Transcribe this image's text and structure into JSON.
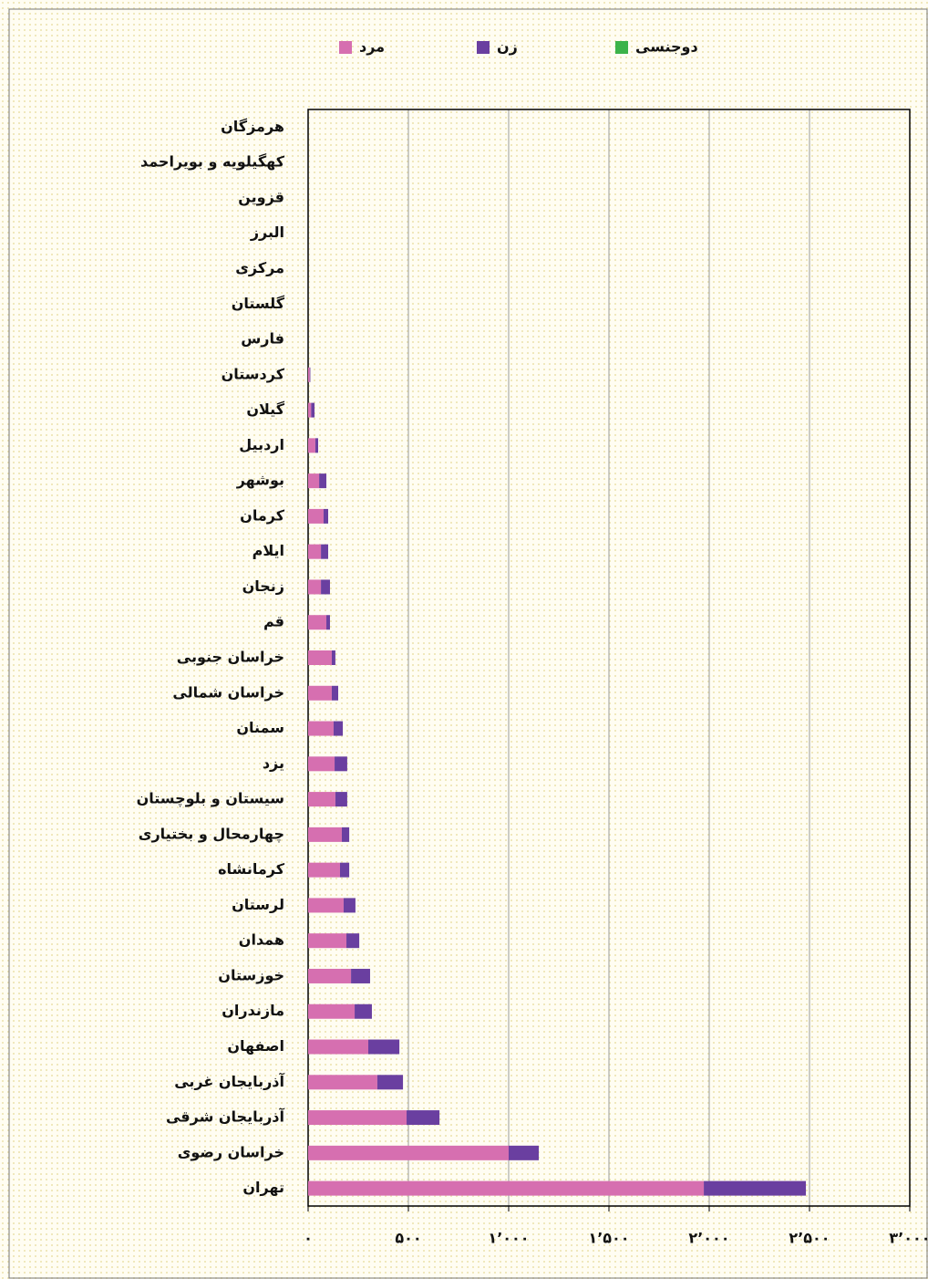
{
  "chart_data": {
    "type": "bar",
    "orientation": "horizontal",
    "stacked": true,
    "categories": [
      "هرمزگان",
      "کهگیلویه و بویراحمد",
      "قزوین",
      "البرز",
      "مرکزی",
      "گلستان",
      "فارس",
      "کردستان",
      "گیلان",
      "اردبیل",
      "بوشهر",
      "کرمان",
      "ایلام",
      "زنجان",
      "قم",
      "خراسان جنوبی",
      "خراسان شمالی",
      "سمنان",
      "یزد",
      "سیستان و بلوچستان",
      "چهارمحال و بختیاری",
      "کرمانشاه",
      "لرستان",
      "همدان",
      "خوزستان",
      "مازندران",
      "اصفهان",
      "آذربایجان غربی",
      "آذربایجان شرقی",
      "خراسان رضوی",
      "تهران"
    ],
    "series": [
      {
        "name": "مرد",
        "color": "#d66fb0",
        "values": [
          0,
          0,
          0,
          0,
          0,
          0,
          0,
          8,
          15,
          36,
          55,
          77,
          64,
          64,
          91,
          118,
          118,
          127,
          132,
          136,
          168,
          159,
          177,
          191,
          214,
          232,
          300,
          345,
          491,
          1000,
          1973
        ]
      },
      {
        "name": "زن",
        "color": "#6a3fa0",
        "values": [
          0,
          0,
          0,
          0,
          0,
          0,
          0,
          3,
          17,
          14,
          36,
          23,
          36,
          45,
          18,
          18,
          32,
          46,
          63,
          59,
          37,
          46,
          59,
          64,
          95,
          86,
          155,
          128,
          164,
          150,
          509
        ]
      },
      {
        "name": "دوجنسی",
        "color": "#3cb34a",
        "values": [
          0,
          0,
          0,
          0,
          0,
          0,
          0,
          0,
          0,
          0,
          0,
          0,
          0,
          0,
          0,
          0,
          0,
          0,
          0,
          0,
          0,
          0,
          0,
          0,
          0,
          0,
          0,
          0,
          0,
          0,
          0
        ]
      }
    ],
    "xlim": [
      0,
      3000
    ],
    "xticks": [
      {
        "value": 0,
        "label": "۰"
      },
      {
        "value": 500,
        "label": "۵۰۰"
      },
      {
        "value": 1000,
        "label": "۱٬۰۰۰"
      },
      {
        "value": 1500,
        "label": "۱٬۵۰۰"
      },
      {
        "value": 2000,
        "label": "۲٬۰۰۰"
      },
      {
        "value": 2500,
        "label": "۲٬۵۰۰"
      },
      {
        "value": 3000,
        "label": "۳٬۰۰۰"
      }
    ],
    "grid": true,
    "legend": "top"
  }
}
